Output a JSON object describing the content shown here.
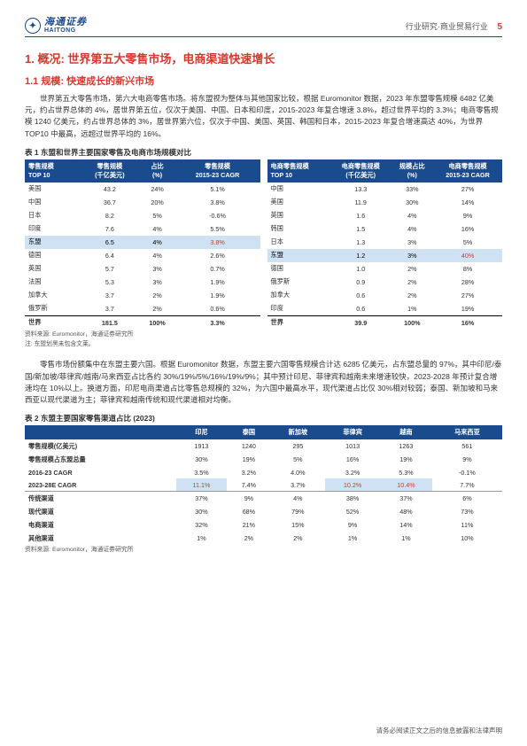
{
  "header": {
    "logo_cn": "海通证券",
    "logo_en": "HAITONG",
    "right_text": "行业研究·商业贸易行业",
    "page_num": "5"
  },
  "h1": "1. 概况: 世界第五大零售市场，电商渠道快速增长",
  "h2": "1.1 规模: 快速成长的新兴市场",
  "para1": "世界第五大零售市场，第六大电商零售市场。将东盟视为整体与其他国家比较，根据 Euromonitor 数据，2023 年东盟零售规模 6482 亿美元，约占世界总体的 4%，居世界第五位，仅次于美国、中国、日本和印度，2015-2023 年复合增速 3.8%，超过世界平均的 3.3%；电商零售规模 1240 亿美元，约占世界总体的 3%，居世界第六位，仅次于中国、美国、英国、韩国和日本，2015-2023 年复合增速高达 40%，为世界 TOP10 中最高，远超过世界平均的 16%。",
  "t1_title": "表 1 东盟和世界主要国家零售及电商市场规模对比",
  "t1_left": {
    "headers": [
      "零售规模\nTOP 10",
      "零售规模\n(千亿美元)",
      "占比\n(%)",
      "零售规模\n2015-23 CAGR"
    ],
    "rows": [
      [
        "美国",
        "43.2",
        "24%",
        "5.1%"
      ],
      [
        "中国",
        "36.7",
        "20%",
        "3.8%"
      ],
      [
        "日本",
        "8.2",
        "5%",
        "-0.6%"
      ],
      [
        "印度",
        "7.6",
        "4%",
        "5.5%"
      ],
      [
        "东盟",
        "6.5",
        "4%",
        "3.8%"
      ],
      [
        "德国",
        "6.4",
        "4%",
        "2.6%"
      ],
      [
        "英国",
        "5.7",
        "3%",
        "0.7%"
      ],
      [
        "法国",
        "5.3",
        "3%",
        "1.9%"
      ],
      [
        "加拿大",
        "3.7",
        "2%",
        "1.9%"
      ],
      [
        "俄罗斯",
        "3.7",
        "2%",
        "0.6%"
      ]
    ],
    "total": [
      "世界",
      "181.5",
      "100%",
      "3.3%"
    ],
    "hl_index": 4
  },
  "t1_right": {
    "headers": [
      "电商零售规模\nTOP 10",
      "电商零售规模\n(千亿美元)",
      "规模占比\n(%)",
      "电商零售规模\n2015-23 CAGR"
    ],
    "rows": [
      [
        "中国",
        "13.3",
        "33%",
        "27%"
      ],
      [
        "美国",
        "11.9",
        "30%",
        "14%"
      ],
      [
        "英国",
        "1.6",
        "4%",
        "9%"
      ],
      [
        "韩国",
        "1.5",
        "4%",
        "16%"
      ],
      [
        "日本",
        "1.3",
        "3%",
        "5%"
      ],
      [
        "东盟",
        "1.2",
        "3%",
        "40%"
      ],
      [
        "德国",
        "1.0",
        "2%",
        "8%"
      ],
      [
        "俄罗斯",
        "0.9",
        "2%",
        "28%"
      ],
      [
        "加拿大",
        "0.6",
        "2%",
        "27%"
      ],
      [
        "印度",
        "0.6",
        "1%",
        "19%"
      ]
    ],
    "total": [
      "世界",
      "39.9",
      "100%",
      "16%"
    ],
    "hl_index": 5
  },
  "t1_src1": "资料来源: Euromonitor，海通证券研究所",
  "t1_src2": "注: 东盟划黑未包含文莱。",
  "para2": "零售市场份额集中在东盟主要六国。根据 Euromonitor 数据，东盟主要六国零售规模合计达 6285 亿美元，占东盟总量的 97%，其中印尼/泰国/新加坡/菲律宾/越南/马来西亚占比各约 30%/19%/5%/16%/19%/9%；其中预计印尼、菲律宾和越南未来增速较快，2023-2028 年预计复合增速均在 10%以上。换道方面，印尼电商渠道占比零售总规模的 32%，为六国中最高水平，现代渠道占比仅 30%相对较弱；泰国、新加坡和马来西亚以现代渠道为主；菲律宾和越南传统和现代渠道相对均衡。",
  "t2_title": "表 2 东盟主要国家零售渠道占比 (2023)",
  "t2": {
    "headers": [
      "",
      "印尼",
      "泰国",
      "新加坡",
      "菲律宾",
      "越南",
      "马来西亚"
    ],
    "rows": [
      {
        "cells": [
          "零售规模(亿美元)",
          "1913",
          "1240",
          "295",
          "1013",
          "1263",
          "561"
        ]
      },
      {
        "cells": [
          "零售规模占东盟总量",
          "30%",
          "19%",
          "5%",
          "16%",
          "19%",
          "9%"
        ]
      },
      {
        "cells": [
          "2016-23 CAGR",
          "3.5%",
          "3.2%",
          "4.0%",
          "3.2%",
          "5.3%",
          "-0.1%"
        ]
      },
      {
        "cells": [
          "2023-28E CAGR",
          "11.1%",
          "7.4%",
          "3.7%",
          "10.2%",
          "10.4%",
          "7.7%"
        ],
        "hl": [
          1,
          4,
          5
        ]
      },
      {
        "cells": [
          "传统渠道",
          "37%",
          "9%",
          "4%",
          "38%",
          "37%",
          "6%"
        ],
        "sep": true
      },
      {
        "cells": [
          "现代渠道",
          "30%",
          "68%",
          "79%",
          "52%",
          "48%",
          "73%"
        ]
      },
      {
        "cells": [
          "电商渠道",
          "32%",
          "21%",
          "15%",
          "9%",
          "14%",
          "11%"
        ]
      },
      {
        "cells": [
          "其他渠道",
          "1%",
          "2%",
          "2%",
          "1%",
          "1%",
          "10%"
        ]
      }
    ]
  },
  "t2_src": "资料来源: Euromonitor，海通证券研究所",
  "footer": "请务必阅读正文之后的信息披露和法律声明"
}
